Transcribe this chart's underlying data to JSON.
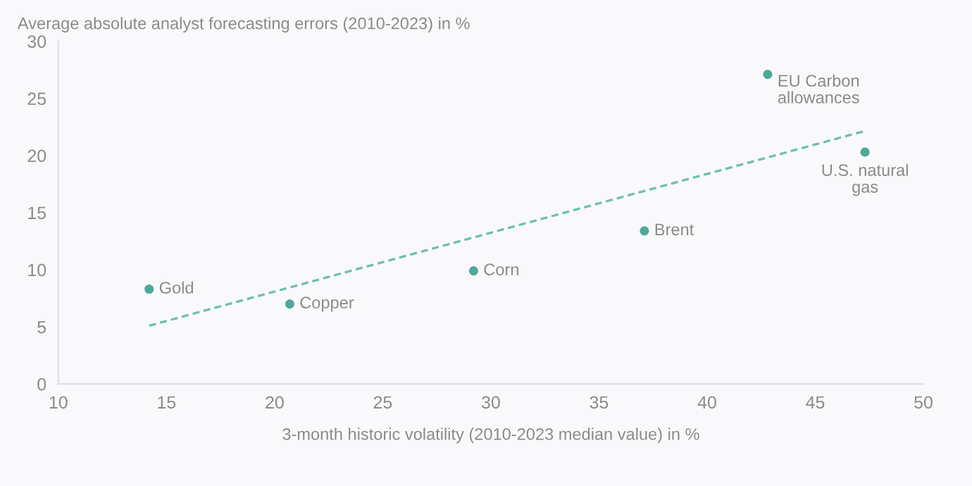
{
  "chart_data": {
    "type": "scatter",
    "ylabel": "Average absolute analyst forecasting errors (2010-2023) in %",
    "xlabel": "3-month historic volatility (2010-2023 median value) in %",
    "series": [
      {
        "color": "#4fa89a",
        "x": [
          14.2,
          20.7,
          29.2,
          37.1,
          42.8,
          47.3
        ],
        "values": [
          8.3,
          7.0,
          9.9,
          13.4,
          27.1,
          20.3
        ]
      },
      {
        "type": "line",
        "color": "#6fbfb1",
        "line_style": "dashed",
        "marker": "none",
        "x": [
          14.2,
          47.2
        ],
        "values": [
          5.1,
          22.1
        ]
      }
    ],
    "annotations": [
      {
        "text": "Gold",
        "x": 14.2,
        "y": 8.3
      },
      {
        "text": "Copper",
        "x": 20.7,
        "y": 7.0
      },
      {
        "text": "Corn",
        "x": 29.2,
        "y": 9.9
      },
      {
        "text": "Brent",
        "x": 37.1,
        "y": 13.4
      },
      {
        "text": "EU Carbon\nallowances",
        "x": 42.8,
        "y": 27.1
      },
      {
        "text": "U.S. natural\ngas",
        "x": 47.3,
        "y": 20.3
      }
    ],
    "xlim": [
      10,
      50
    ],
    "xticks": [
      10,
      15,
      20,
      25,
      30,
      35,
      40,
      45,
      50
    ],
    "ylim": [
      0,
      30
    ],
    "yticks": [
      0,
      5,
      10,
      15,
      20,
      25,
      30
    ],
    "grid": false,
    "legend": false
  }
}
